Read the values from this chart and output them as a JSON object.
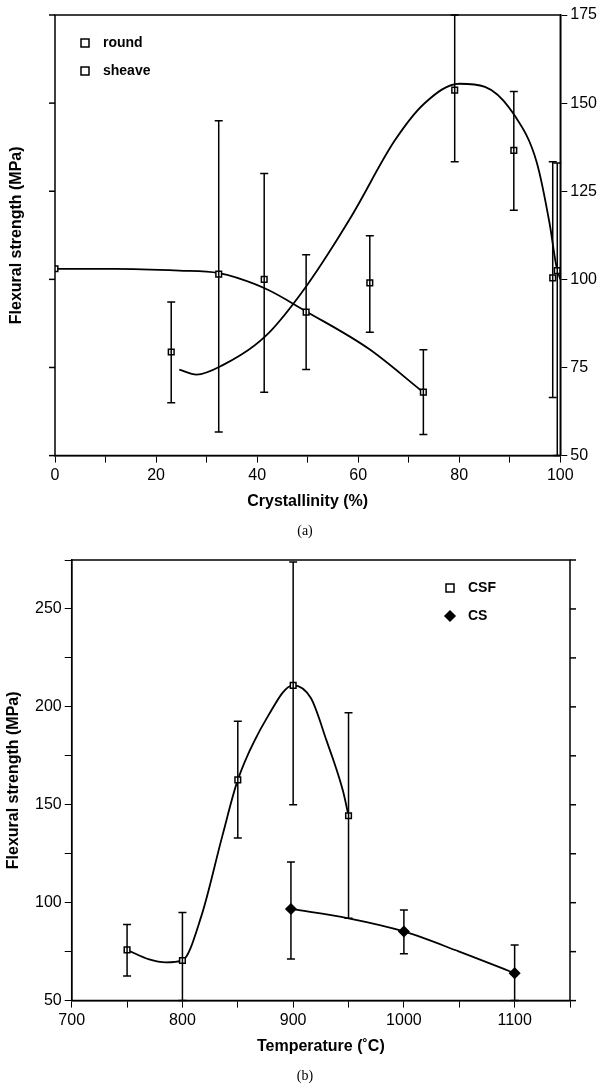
{
  "chart_data": [
    {
      "type": "scatter",
      "xlabel": "Crystallinity (%)",
      "ylabel": "Flexural strength (MPa)",
      "annotations": [
        "(a)"
      ],
      "legend": "top left",
      "xlim": [
        0,
        100
      ],
      "ylim": [
        50,
        175
      ],
      "xticks": [
        0,
        {
          "value": 10,
          "label": null
        },
        20,
        {
          "value": 30,
          "label": null
        },
        40,
        {
          "value": 50,
          "label": null
        },
        60,
        {
          "value": 70,
          "label": null
        },
        80,
        {
          "value": 90,
          "label": null
        },
        100
      ],
      "yticks": [
        50,
        75,
        100,
        125,
        150,
        175
      ],
      "series": [
        {
          "name": "round",
          "color": "#000000",
          "marker": "square",
          "x": [
            0,
            32.4,
            49.7,
            72.9,
            99.4
          ],
          "values": [
            103,
            101.5,
            90.7,
            68,
            102.5
          ],
          "errors": [
            null,
            [
              56.7,
              145
            ],
            [
              74.4,
              107
            ],
            [
              56,
              80
            ],
            [
              50,
              133
            ]
          ]
        },
        {
          "name": "sheave",
          "color": "#000000",
          "marker": "square",
          "x": [
            23,
            41.4,
            62.3,
            79.1,
            90.8,
            98.5
          ],
          "values": [
            79.4,
            100,
            99,
            153.7,
            136.6,
            100.4
          ],
          "errors": [
            [
              65,
              93.6
            ],
            [
              68,
              130
            ],
            [
              85,
              112.4
            ],
            [
              133.4,
              175
            ],
            [
              119.6,
              153.3
            ],
            [
              66.5,
              133.4
            ]
          ]
        },
        {
          "type": "line",
          "color": "#000000",
          "marker": "none",
          "x": [
            0,
            11.8,
            24.6,
            32.4,
            41.6,
            49.7,
            62.1,
            72.7
          ],
          "values": [
            103,
            103,
            102.5,
            101.8,
            97.4,
            90.9,
            80.3,
            68.2
          ]
        },
        {
          "type": "line",
          "color": "#000000",
          "marker": "none",
          "x": [
            24.6,
            28,
            33.1,
            41.6,
            49.7,
            58.7,
            67.2,
            73.1,
            80,
            85.1,
            91,
            95.3,
            97.9,
            99.2,
            100
          ],
          "values": [
            74.4,
            73,
            75.6,
            83.8,
            98,
            118,
            139.3,
            149.9,
            155.5,
            154.6,
            146.4,
            133.4,
            115.7,
            103.9,
            100
          ]
        }
      ]
    },
    {
      "type": "scatter",
      "xlabel": "Temperature (˚C)",
      "ylabel": "Flexural strength (MPa)",
      "annotations": [
        "(b)"
      ],
      "legend": "top right",
      "xlim": [
        700,
        1150
      ],
      "ylim": [
        50,
        275
      ],
      "xticks": [
        700,
        {
          "value": 750,
          "label": null
        },
        800,
        {
          "value": 850,
          "label": null
        },
        900,
        {
          "value": 950,
          "label": null
        },
        1000,
        {
          "value": 1050,
          "label": null
        },
        1100,
        {
          "value": 1150,
          "label": null
        }
      ],
      "yticks": [
        50,
        {
          "value": 75,
          "label": null
        },
        100,
        {
          "value": 125,
          "label": null
        },
        150,
        {
          "value": 175,
          "label": null
        },
        200,
        {
          "value": 225,
          "label": null
        },
        250,
        {
          "value": 275,
          "label": null
        }
      ],
      "series": [
        {
          "name": "CSF",
          "color": "#000000",
          "marker": "square",
          "x": [
            750,
            800,
            850,
            900,
            950
          ],
          "values": [
            75.9,
            70.5,
            162.7,
            211,
            144.4
          ],
          "errors": [
            [
              62.6,
              88.8
            ],
            [
              50,
              95
            ],
            [
              133,
              192.7
            ],
            [
              150,
              274
            ],
            [
              92,
              197
            ]
          ]
        },
        {
          "name": "CS",
          "color": "#000000",
          "marker": "diamond",
          "x": [
            898,
            1000,
            1100
          ],
          "values": [
            96.8,
            85.3,
            64
          ],
          "errors": [
            [
              71.3,
              120.8
            ],
            [
              73.9,
              96.3
            ],
            [
              50,
              78.4
            ]
          ]
        },
        {
          "type": "line",
          "color": "#000000",
          "marker": "none",
          "x": [
            750,
            770,
            785,
            800,
            817,
            836,
            850,
            877,
            900,
            916,
            930,
            945,
            950
          ],
          "values": [
            75.9,
            71,
            69.5,
            70.5,
            93,
            134,
            162.7,
            195,
            211,
            204.5,
            183,
            157,
            144.4
          ]
        },
        {
          "type": "line",
          "color": "#000000",
          "marker": "none",
          "x": [
            898,
            950,
            1000,
            1050,
            1100
          ],
          "values": [
            96.8,
            92,
            85.3,
            75,
            64
          ]
        }
      ]
    }
  ]
}
